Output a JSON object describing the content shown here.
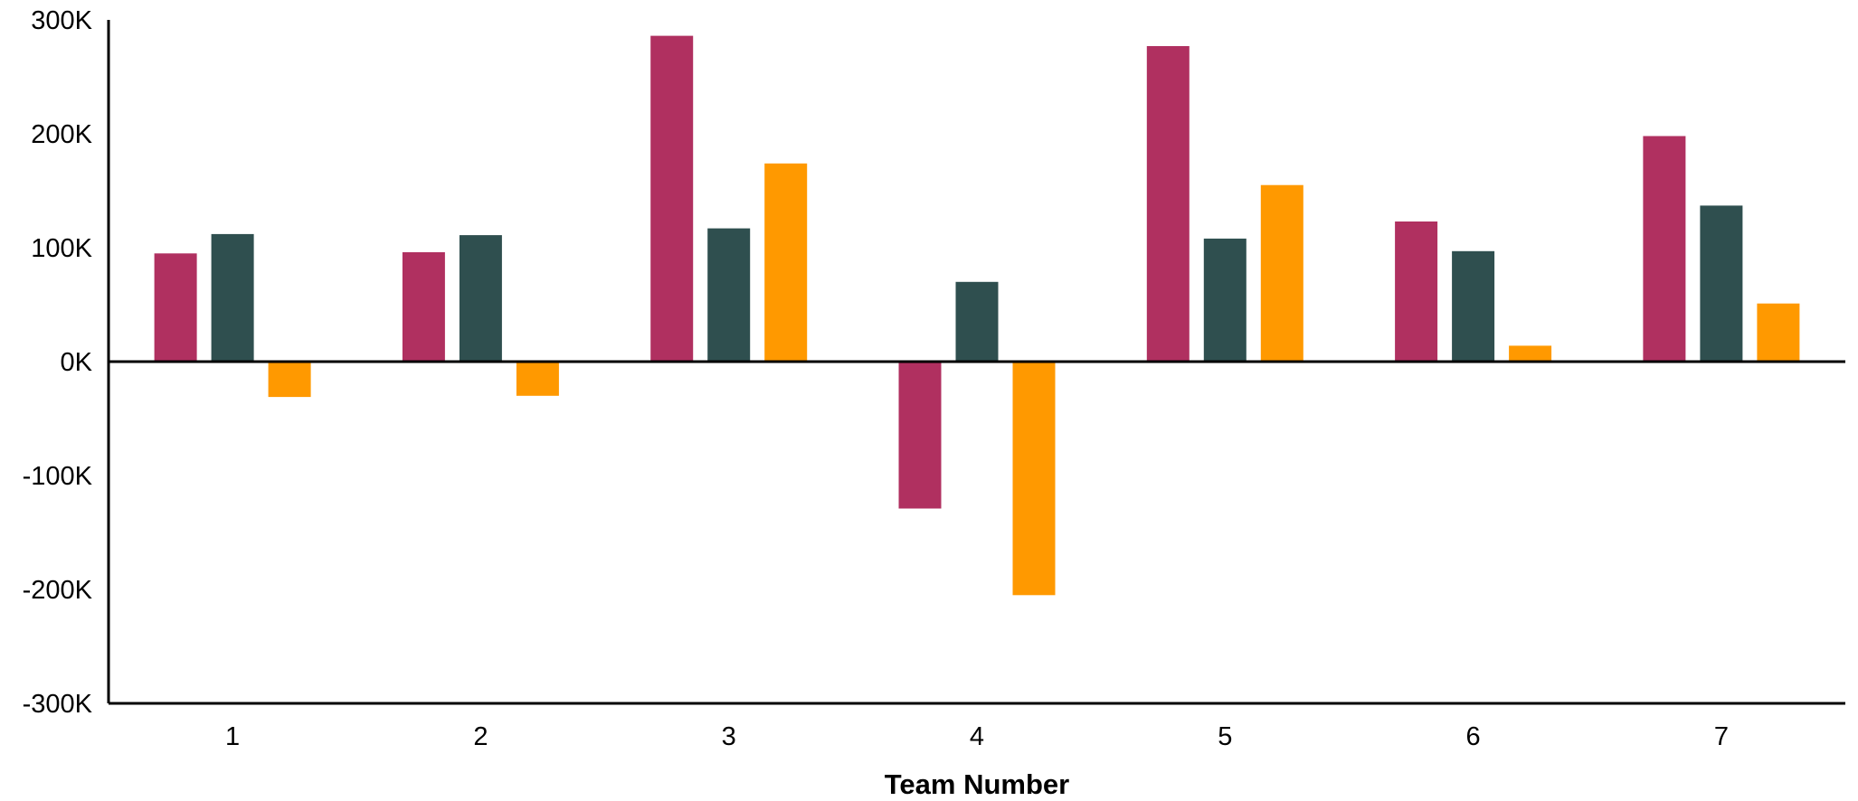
{
  "chart_data": {
    "type": "bar",
    "title": "",
    "xlabel": "Team Number",
    "ylabel": "",
    "categories": [
      "1",
      "2",
      "3",
      "4",
      "5",
      "6",
      "7"
    ],
    "series": [
      {
        "color": "#B03060",
        "values": [
          95000,
          96000,
          286000,
          -129000,
          277000,
          123000,
          198000
        ]
      },
      {
        "color": "#2F4F4F",
        "values": [
          112000,
          111000,
          117000,
          70000,
          108000,
          97000,
          137000
        ]
      },
      {
        "color": "#FF9900",
        "values": [
          -31000,
          -30000,
          174000,
          -205000,
          155000,
          14000,
          51000
        ]
      }
    ],
    "ylim": [
      -300000,
      300000
    ],
    "yticks": [
      {
        "value": 300000,
        "label": "300K"
      },
      {
        "value": 200000,
        "label": "200K"
      },
      {
        "value": 100000,
        "label": "100K"
      },
      {
        "value": 0,
        "label": "0K"
      },
      {
        "value": -100000,
        "label": "-100K"
      },
      {
        "value": -200000,
        "label": "-200K"
      },
      {
        "value": -300000,
        "label": "-300K"
      }
    ],
    "grid": false,
    "legend": "none"
  }
}
